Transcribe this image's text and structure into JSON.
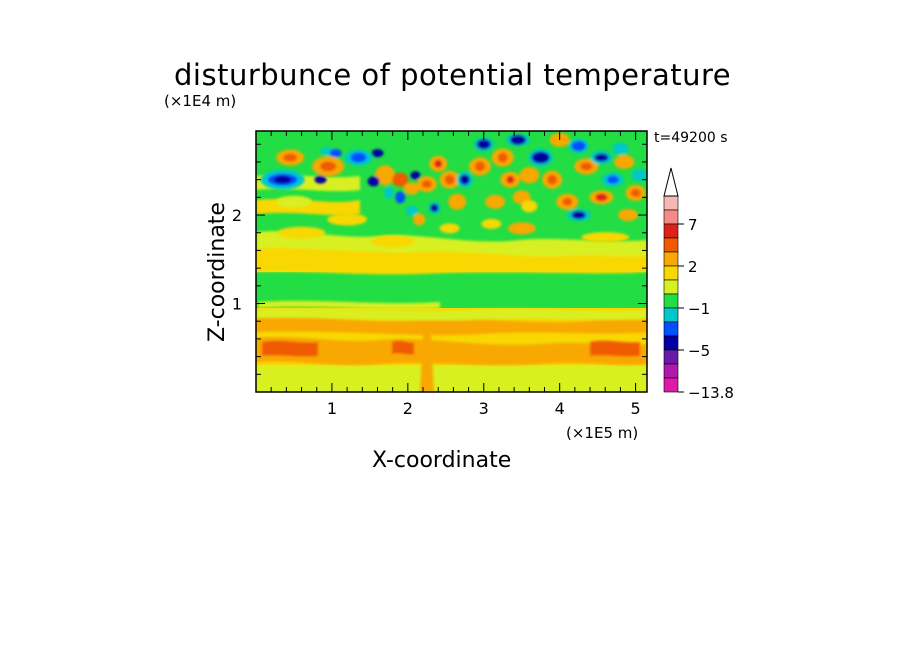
{
  "chart_data": {
    "type": "heatmap",
    "title": "disturbunce of potential temperature",
    "xlabel": "X-coordinate",
    "ylabel": "Z-coordinate",
    "x_unit": "(×1E5 m)",
    "y_unit": "(×1E4 m)",
    "annotation": "t=49200 s",
    "xlim": [
      0,
      5.15
    ],
    "ylim": [
      0,
      2.95
    ],
    "x_ticks": [
      1,
      2,
      3,
      4,
      5
    ],
    "y_ticks": [
      1,
      2
    ],
    "x_tick_labels": [
      "1",
      "2",
      "3",
      "4",
      "5"
    ],
    "y_tick_labels": [
      "1",
      "2"
    ],
    "colorbar": {
      "labeled_levels": [
        "7",
        "2",
        "−1",
        "−5",
        "−13.8"
      ],
      "colors_top_to_bottom": [
        "#f5b8b3",
        "#f48b86",
        "#e02018",
        "#f05a00",
        "#f8a800",
        "#f8d800",
        "#d8f020",
        "#22dd44",
        "#00c8c8",
        "#0050ff",
        "#0000a0",
        "#6a1aa8",
        "#b018b0",
        "#e01aa8"
      ],
      "extend_max": true
    }
  }
}
